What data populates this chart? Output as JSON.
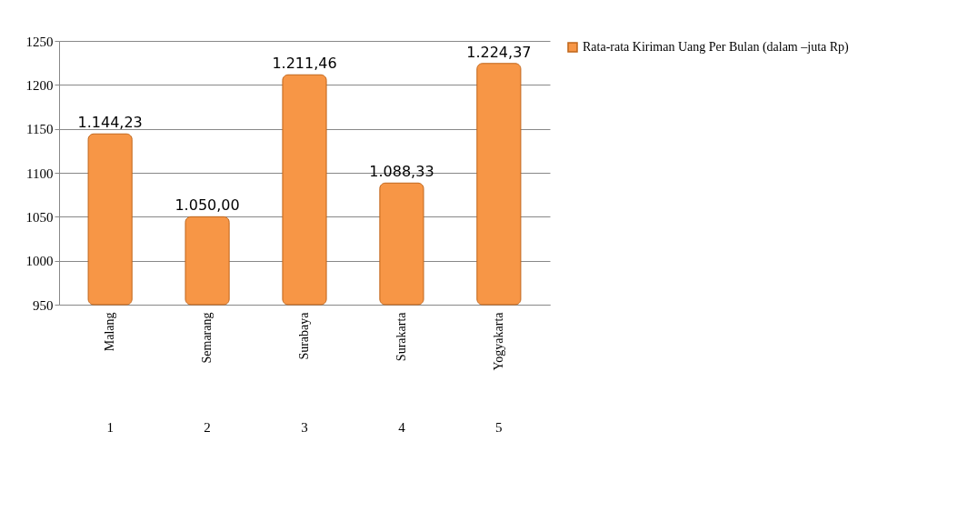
{
  "chart_data": {
    "type": "bar",
    "categories": [
      "Malang",
      "Semarang",
      "Surabaya",
      "Surakarta",
      "Yogyakarta"
    ],
    "series": [
      {
        "name": "Rata-rata Kiriman  Uang Per Bulan (dalam –juta Rp)",
        "color": "#f79646",
        "values": [
          1144.23,
          1050.0,
          1211.46,
          1088.33,
          1224.37
        ],
        "value_labels": [
          "1.144,23",
          "1.050,00",
          "1.211,46",
          "1.088,33",
          "1.224,37"
        ]
      }
    ],
    "ylim": [
      950,
      1250
    ],
    "yticks": [
      950,
      1000,
      1050,
      1100,
      1150,
      1200,
      1250
    ],
    "grid": "y",
    "legend": "right",
    "annotations": [
      "1",
      "2",
      "3",
      "4",
      "5"
    ]
  }
}
